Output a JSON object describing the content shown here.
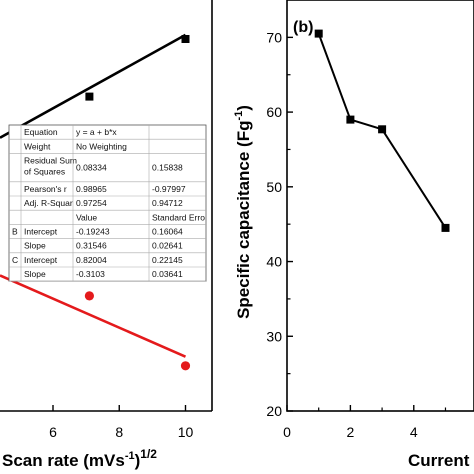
{
  "chart_data": [
    {
      "panel": "a",
      "type": "scatter",
      "xlabel_text": "Scan rate (mVs",
      "xlabel_sup1": "-1",
      "xlabel_close": ")",
      "xlabel_sup2": "1/2",
      "xlim": [
        4.4,
        10.8
      ],
      "xticks": [
        6,
        8,
        10
      ],
      "ylim": [
        0,
        1
      ],
      "series": [
        {
          "color": "#000000",
          "marker": "square",
          "x": [
            7.1,
            10.0
          ],
          "y": [
            0.765,
            0.905
          ],
          "fit_x": [
            4.4,
            10.0
          ],
          "fit_y": [
            0.665,
            0.915
          ]
        },
        {
          "color": "#e41a1c",
          "marker": "circle",
          "x": [
            7.1,
            10.0
          ],
          "y": [
            0.28,
            0.11
          ],
          "fit_x": [
            4.4,
            10.0
          ],
          "fit_y": [
            0.33,
            0.132
          ]
        }
      ],
      "fit_table": {
        "rows": [
          [
            "",
            "Equation",
            "y = a + b*x",
            ""
          ],
          [
            "",
            "Weight",
            "No Weighting",
            ""
          ],
          [
            "",
            "Residual Sum\nof Squares",
            "0.08334",
            "0.15838"
          ],
          [
            "",
            "Pearson's r",
            "0.98965",
            "-0.97997"
          ],
          [
            "",
            "Adj. R-Squar",
            "0.97254",
            "0.94712"
          ],
          [
            "",
            "",
            "Value",
            "Standard Erro"
          ],
          [
            "B",
            "Intercept",
            "-0.19243",
            "0.16064"
          ],
          [
            "",
            "Slope",
            "0.31546",
            "0.02641"
          ],
          [
            "C",
            "Intercept",
            "0.82004",
            "0.22145"
          ],
          [
            "",
            "Slope",
            "-0.3103",
            "0.03641"
          ]
        ]
      }
    },
    {
      "panel": "b",
      "type": "line",
      "label": "(b)",
      "ylabel_text": "Specific capacitance (Fg",
      "ylabel_sup": "-1",
      "ylabel_close": ")",
      "xlabel": "Current",
      "xlim": [
        0,
        5.9
      ],
      "ylim": [
        20,
        75
      ],
      "xticks": [
        0,
        2,
        4
      ],
      "yticks": [
        20,
        30,
        40,
        50,
        60,
        70
      ],
      "series": [
        {
          "color": "#000000",
          "marker": "square",
          "x": [
            1,
            2,
            3,
            5
          ],
          "y": [
            70.5,
            59.0,
            57.7,
            44.5
          ]
        }
      ]
    }
  ]
}
